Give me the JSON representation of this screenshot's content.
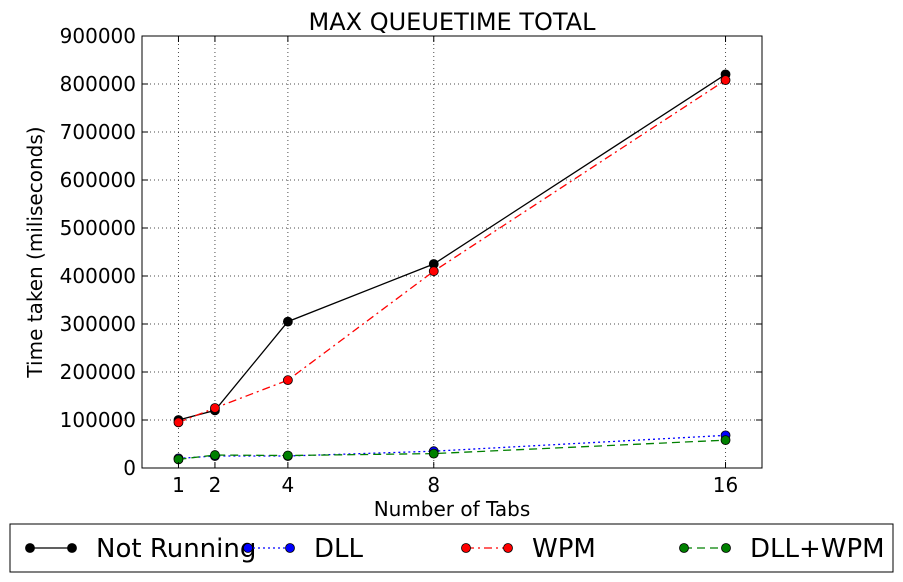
{
  "chart_data": {
    "type": "line",
    "title": "MAX QUEUETIME TOTAL",
    "xlabel": "Number of Tabs",
    "ylabel": "Time taken (miliseconds)",
    "x": [
      1,
      2,
      4,
      8,
      16
    ],
    "xticks": [
      "1",
      "2",
      "4",
      "8",
      "16"
    ],
    "xlim": [
      0,
      17
    ],
    "ylim": [
      0,
      900000
    ],
    "yticks": [
      "0",
      "100000",
      "200000",
      "300000",
      "400000",
      "500000",
      "600000",
      "700000",
      "800000",
      "900000"
    ],
    "grid": true,
    "legend_position": "bottom, outside plot",
    "series": [
      {
        "name": "Not Running",
        "values": [
          100000,
          120000,
          305000,
          425000,
          820000
        ],
        "color": "#000000",
        "dash": "solid"
      },
      {
        "name": "DLL",
        "values": [
          20000,
          25000,
          25000,
          35000,
          68000
        ],
        "color": "#0000ff",
        "dash": "dotted"
      },
      {
        "name": "WPM",
        "values": [
          95000,
          125000,
          183000,
          410000,
          808000
        ],
        "color": "#ff0000",
        "dash": "dashdot"
      },
      {
        "name": "DLL+WPM",
        "values": [
          18000,
          27000,
          26000,
          30000,
          58000
        ],
        "color": "#008000",
        "dash": "dashed"
      }
    ]
  }
}
